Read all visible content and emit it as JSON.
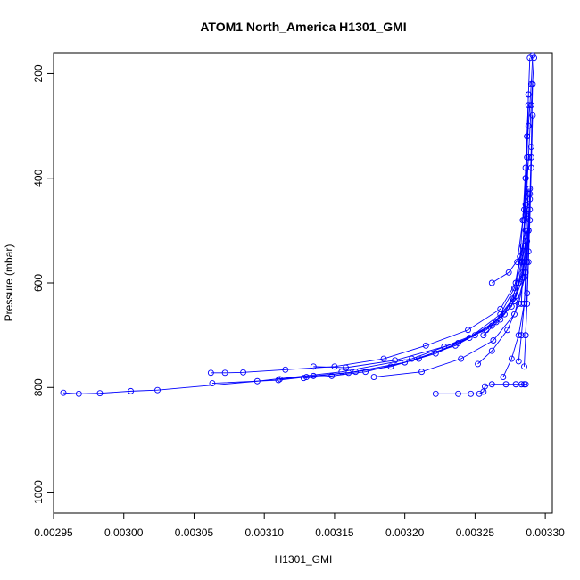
{
  "chart_data": {
    "type": "scatter",
    "title": "ATOM1 North_America H1301_GMI",
    "xlabel": "H1301_GMI",
    "ylabel": "Pressure (mbar)",
    "xlim": [
      0.00295,
      0.003305
    ],
    "ylim": [
      1040,
      160
    ],
    "y_reversed": true,
    "xticks": [
      0.00295,
      0.003,
      0.00305,
      0.0031,
      0.00315,
      0.0032,
      0.00325,
      0.0033
    ],
    "xtick_labels": [
      "0.00295",
      "0.00300",
      "0.00305",
      "0.00310",
      "0.00315",
      "0.00320",
      "0.00325",
      "0.00330"
    ],
    "yticks": [
      200,
      400,
      600,
      800,
      1000
    ],
    "ytick_labels": [
      "200",
      "400",
      "600",
      "800",
      "1000"
    ],
    "color": "#0000ff",
    "grid": false,
    "series": [
      {
        "x": [
          0.002957,
          0.002968,
          0.002983,
          0.003005,
          0.003024,
          0.003095,
          0.003155,
          0.003205,
          0.003246,
          0.003268,
          0.003278,
          0.003282,
          0.003284,
          0.003286,
          0.003287,
          0.003288,
          0.003289
        ],
        "y": [
          810,
          812,
          811,
          807,
          805,
          788,
          770,
          745,
          705,
          660,
          610,
          550,
          480,
          400,
          320,
          240,
          170
        ]
      },
      {
        "x": [
          0.003062,
          0.003072,
          0.003085,
          0.003115,
          0.00315,
          0.003185,
          0.003215,
          0.003245,
          0.003268,
          0.003279,
          0.003284,
          0.003286,
          0.003287,
          0.003288
        ],
        "y": [
          772,
          772,
          771,
          766,
          760,
          745,
          720,
          690,
          650,
          600,
          530,
          450,
          360,
          260
        ]
      },
      {
        "x": [
          0.003063,
          0.00311,
          0.00313,
          0.00316,
          0.0032,
          0.003236,
          0.003262,
          0.003277,
          0.003283,
          0.003286,
          0.003288
        ],
        "y": [
          792,
          786,
          780,
          772,
          752,
          720,
          682,
          630,
          560,
          470,
          360
        ]
      },
      {
        "x": [
          0.003111,
          0.003135,
          0.003165,
          0.00319,
          0.003222,
          0.00325,
          0.003271,
          0.003281,
          0.003286,
          0.003288
        ],
        "y": [
          784,
          778,
          770,
          760,
          735,
          700,
          660,
          600,
          520,
          420
        ]
      },
      {
        "x": [
          0.003128,
          0.003148,
          0.003172,
          0.00321,
          0.003238,
          0.003265,
          0.003279,
          0.003285,
          0.003287
        ],
        "y": [
          782,
          778,
          770,
          745,
          715,
          675,
          625,
          560,
          460
        ]
      },
      {
        "x": [
          0.003135,
          0.003158,
          0.003193,
          0.003228,
          0.003258,
          0.003276,
          0.003284,
          0.003287
        ],
        "y": [
          760,
          762,
          748,
          722,
          690,
          645,
          580,
          500
        ]
      },
      {
        "x": [
          0.003178,
          0.003212,
          0.00324,
          0.003263,
          0.003278,
          0.003285,
          0.003288
        ],
        "y": [
          780,
          770,
          745,
          710,
          660,
          590,
          500
        ]
      },
      {
        "x": [
          0.003222,
          0.003238,
          0.003247,
          0.003253,
          0.003256,
          0.003257,
          0.003262,
          0.003272,
          0.003279,
          0.003283,
          0.003285,
          0.003286
        ],
        "y": [
          812,
          812,
          812,
          812,
          808,
          798,
          794,
          794,
          794,
          794,
          794,
          794
        ]
      },
      {
        "x": [
          0.003283,
          0.003284,
          0.003285,
          0.003286,
          0.003287,
          0.003288
        ],
        "y": [
          640,
          560,
          480,
          400,
          320,
          240
        ]
      },
      {
        "x": [
          0.003281,
          0.003283,
          0.003285,
          0.003286,
          0.003288,
          0.003289
        ],
        "y": [
          750,
          700,
          640,
          580,
          500,
          420
        ]
      },
      {
        "x": [
          0.00327,
          0.003276,
          0.003281,
          0.003285,
          0.003287,
          0.003289,
          0.00329
        ],
        "y": [
          780,
          745,
          700,
          640,
          560,
          460,
          360
        ]
      },
      {
        "x": [
          0.003252,
          0.003262,
          0.003273,
          0.003281,
          0.003286,
          0.003288
        ],
        "y": [
          755,
          730,
          690,
          640,
          580,
          500
        ]
      },
      {
        "x": [
          0.003256,
          0.003268,
          0.003278,
          0.003284,
          0.003287,
          0.003289
        ],
        "y": [
          700,
          670,
          635,
          590,
          520,
          430
        ]
      },
      {
        "x": [
          0.003262,
          0.003274,
          0.003282,
          0.003286,
          0.003288
        ],
        "y": [
          600,
          580,
          550,
          500,
          430
        ]
      },
      {
        "x": [
          0.003285,
          0.003286,
          0.003287,
          0.003288,
          0.003289,
          0.00329,
          0.003291
        ],
        "y": [
          760,
          700,
          640,
          560,
          480,
          380,
          280
        ]
      },
      {
        "x": [
          0.003286,
          0.003287,
          0.003288,
          0.003289,
          0.00329,
          0.003291
        ],
        "y": [
          700,
          620,
          540,
          440,
          340,
          220
        ]
      },
      {
        "x": [
          0.00328,
          0.003285,
          0.003288,
          0.00329,
          0.003292
        ],
        "y": [
          560,
          460,
          360,
          260,
          170
        ]
      },
      {
        "x": [
          0.003284,
          0.003286,
          0.003288,
          0.00329,
          0.003291
        ],
        "y": [
          480,
          380,
          300,
          220,
          165
        ]
      }
    ]
  }
}
